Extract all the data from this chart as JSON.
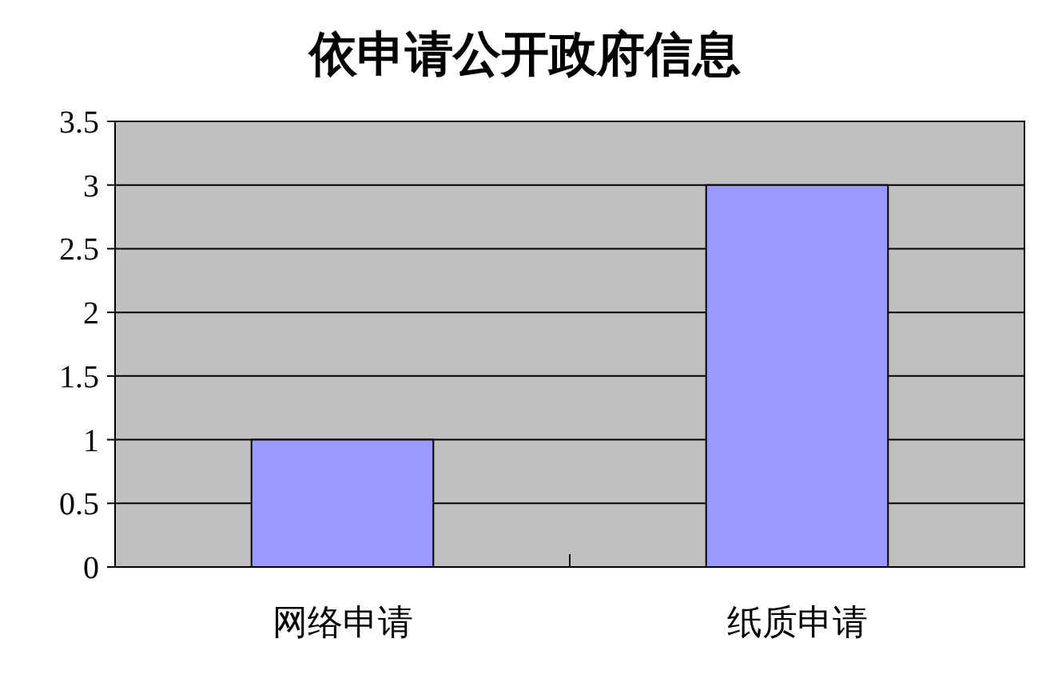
{
  "chart_data": {
    "type": "bar",
    "title": "依申请公开政府信息",
    "categories": [
      "网络申请",
      "纸质申请"
    ],
    "values": [
      1,
      3
    ],
    "color": "#9999ff",
    "ylim": [
      0,
      3.5
    ],
    "yticks": [
      0,
      0.5,
      1,
      1.5,
      2,
      2.5,
      3,
      3.5
    ],
    "grid": "y"
  }
}
